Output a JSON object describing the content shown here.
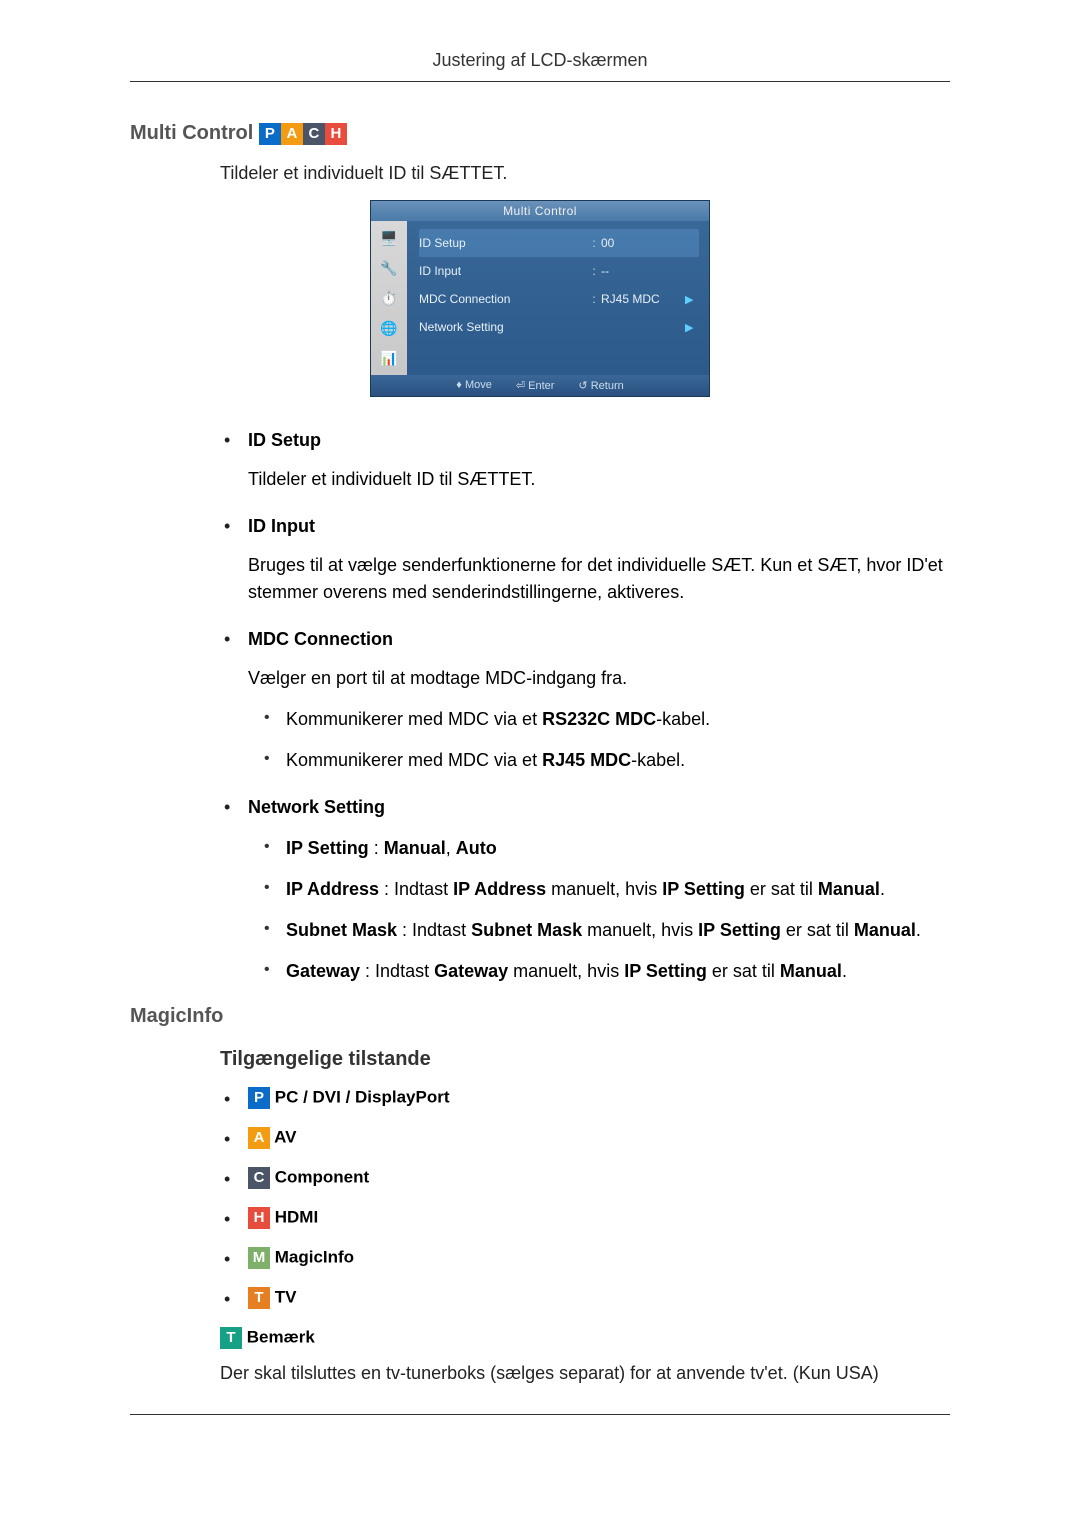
{
  "header": {
    "title": "Justering af LCD-skærmen"
  },
  "multi_control": {
    "heading": "Multi Control",
    "badges": [
      "P",
      "A",
      "C",
      "H"
    ],
    "badge_colors": [
      "#0a6cc8",
      "#f39c12",
      "#4a5568",
      "#e74c3c"
    ],
    "intro": "Tildeler et individuelt ID til SÆTTET.",
    "osd": {
      "title": "Multi Control",
      "rows": [
        {
          "label": "ID Setup",
          "colon": ":",
          "value": "00",
          "arrow": "",
          "hl": true
        },
        {
          "label": "ID Input",
          "colon": ":",
          "value": "--",
          "arrow": ""
        },
        {
          "label": "MDC Connection",
          "colon": ":",
          "value": "RJ45 MDC",
          "arrow": "▶"
        },
        {
          "label": "Network Setting",
          "colon": "",
          "value": "",
          "arrow": "▶"
        }
      ],
      "icons": [
        "🖥️",
        "🔧",
        "⏱️",
        "🌐",
        "📊"
      ],
      "footer": {
        "move": "Move",
        "enter": "Enter",
        "return": "Return"
      }
    },
    "items": {
      "id_setup": {
        "title": "ID Setup",
        "body": "Tildeler et individuelt ID til SÆTTET."
      },
      "id_input": {
        "title": "ID Input",
        "body": "Bruges til at vælge senderfunktionerne for det individuelle SÆT. Kun et SÆT, hvor ID'et stemmer overens med senderindstillingerne, aktiveres."
      },
      "mdc": {
        "title": "MDC Connection",
        "body": "Vælger en port til at modtage MDC-indgang fra.",
        "sub1_pre": "Kommunikerer med MDC via et ",
        "sub1_b": "RS232C MDC",
        "sub1_post": "-kabel.",
        "sub2_pre": "Kommunikerer med MDC via et ",
        "sub2_b": "RJ45 MDC",
        "sub2_post": "-kabel."
      },
      "net": {
        "title": "Network Setting",
        "ip_setting_label": "IP Setting",
        "ip_setting_vals": "Manual, Auto",
        "ip_addr_label": "IP Address",
        "ip_addr_mid": " : Indtast ",
        "ip_addr_b2": "IP Address",
        "ip_addr_mid2": " manuelt, hvis ",
        "ip_addr_b3": "IP Setting",
        "ip_addr_end": " er sat til ",
        "ip_addr_b4": "Manual",
        "subnet_label": "Subnet Mask",
        "subnet_b2": "Subnet Mask",
        "gateway_label": "Gateway",
        "gateway_b2": "Gateway"
      }
    }
  },
  "magicinfo": {
    "heading": "MagicInfo",
    "sub": "Tilgængelige tilstande",
    "modes": [
      {
        "badge": "P",
        "color": "#0a6cc8",
        "label": "PC / DVI / DisplayPort"
      },
      {
        "badge": "A",
        "color": "#f39c12",
        "label": "AV"
      },
      {
        "badge": "C",
        "color": "#4a5568",
        "label": "Component"
      },
      {
        "badge": "H",
        "color": "#e74c3c",
        "label": "HDMI"
      },
      {
        "badge": "M",
        "color": "#7fb069",
        "label": "MagicInfo"
      },
      {
        "badge": "T",
        "color": "#e67e22",
        "label": "TV"
      }
    ],
    "note": {
      "badge": "T",
      "badge_color": "#16a085",
      "title": "Bemærk",
      "body": "Der skal tilsluttes en tv-tunerboks (sælges separat) for at anvende tv'et. (Kun USA)"
    }
  }
}
